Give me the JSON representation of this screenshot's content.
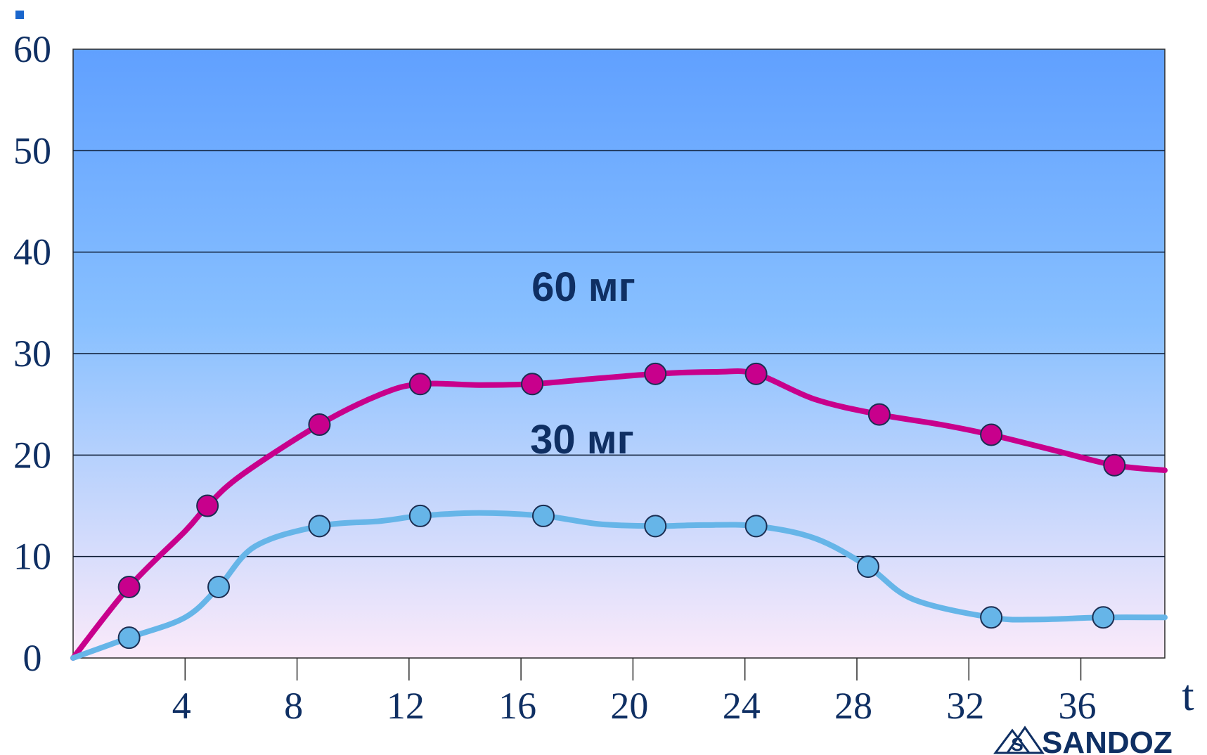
{
  "chart_data": {
    "type": "line",
    "title": "",
    "xlabel": "t",
    "ylabel": "",
    "xlim": [
      0,
      39
    ],
    "ylim": [
      0,
      60
    ],
    "x_ticks": [
      4,
      8,
      12,
      16,
      20,
      24,
      28,
      32,
      36
    ],
    "y_ticks": [
      0,
      10,
      20,
      30,
      40,
      50,
      60
    ],
    "grid": true,
    "series": [
      {
        "name": "60 мг",
        "color": "#c8008c",
        "points": [
          [
            2,
            7
          ],
          [
            4.8,
            15
          ],
          [
            8.8,
            23
          ],
          [
            12.4,
            27
          ],
          [
            16.4,
            27
          ],
          [
            20.8,
            28
          ],
          [
            24.4,
            28
          ],
          [
            28.8,
            24
          ],
          [
            32.8,
            22
          ],
          [
            37.2,
            19
          ]
        ],
        "curve": [
          [
            0,
            0
          ],
          [
            2,
            7
          ],
          [
            4,
            12.5
          ],
          [
            4.8,
            15
          ],
          [
            6,
            18
          ],
          [
            8.8,
            23
          ],
          [
            11,
            26
          ],
          [
            12.4,
            27
          ],
          [
            14.5,
            26.9
          ],
          [
            16.4,
            27
          ],
          [
            18.5,
            27.5
          ],
          [
            20.8,
            28
          ],
          [
            23,
            28.2
          ],
          [
            24.4,
            28
          ],
          [
            26.5,
            25.5
          ],
          [
            28.8,
            24
          ],
          [
            31,
            23
          ],
          [
            32.8,
            22
          ],
          [
            35,
            20.5
          ],
          [
            37.2,
            19
          ],
          [
            39,
            18.5
          ]
        ]
      },
      {
        "name": "30 мг",
        "color": "#66b5e8",
        "points": [
          [
            2,
            2
          ],
          [
            5.2,
            7
          ],
          [
            8.8,
            13
          ],
          [
            12.4,
            14
          ],
          [
            16.8,
            14
          ],
          [
            20.8,
            13
          ],
          [
            24.4,
            13
          ],
          [
            28.4,
            9
          ],
          [
            32.8,
            4
          ],
          [
            36.8,
            4
          ]
        ],
        "curve": [
          [
            0,
            0
          ],
          [
            2,
            2
          ],
          [
            4,
            4
          ],
          [
            5.2,
            7
          ],
          [
            6.5,
            11
          ],
          [
            8.8,
            13
          ],
          [
            11,
            13.5
          ],
          [
            12.4,
            14
          ],
          [
            14.5,
            14.3
          ],
          [
            16.8,
            14
          ],
          [
            18.8,
            13.2
          ],
          [
            20.8,
            13
          ],
          [
            22.5,
            13.1
          ],
          [
            24.4,
            13
          ],
          [
            26.5,
            11.8
          ],
          [
            28.4,
            9
          ],
          [
            30,
            5.8
          ],
          [
            32.8,
            4
          ],
          [
            34.5,
            3.8
          ],
          [
            36.8,
            4
          ],
          [
            39,
            4
          ]
        ]
      }
    ]
  },
  "brand": {
    "name": "SANDOZ",
    "logo_icon": "sandoz-triangle-logo"
  },
  "colors": {
    "plot_top": "#60a0ff",
    "plot_mid": "#88c0ff",
    "plot_bottom": "#fbeafa",
    "gridline": "#0b1a33",
    "text": "#0f2f63",
    "marker_stroke": "#1b2e52",
    "corner_mark": "#1a66cc"
  }
}
